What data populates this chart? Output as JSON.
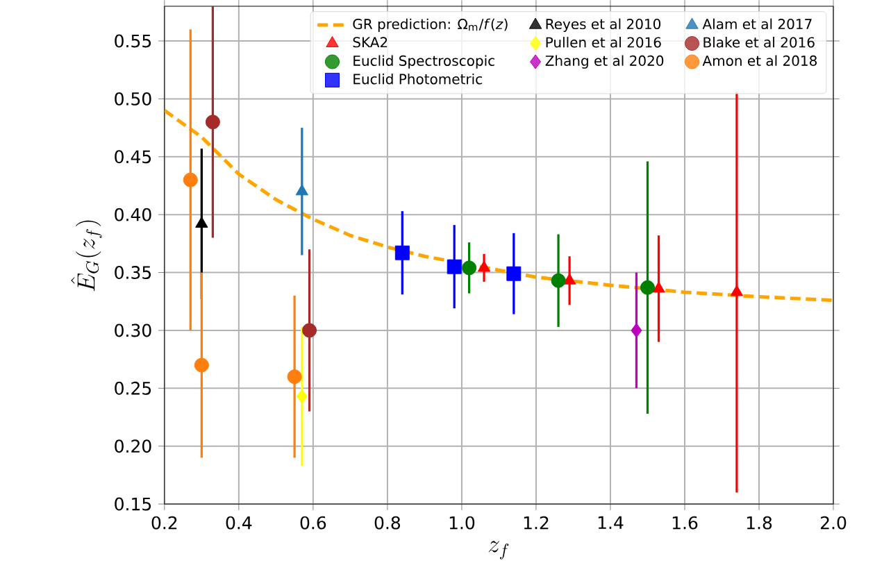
{
  "chart_data": {
    "type": "scatter",
    "xlabel": "z_f",
    "ylabel": "\\hat{E}_G(z_f)",
    "xlim": [
      0.2,
      2.0
    ],
    "xticks": [
      0.2,
      0.4,
      0.6,
      0.8,
      {
        "value": 1.0,
        "label": "1.0"
      },
      1.2,
      1.4,
      1.6,
      1.8,
      {
        "value": 2.0,
        "label": "2.0"
      }
    ],
    "ylim": [
      0.15,
      0.58
    ],
    "yticks": [
      0.15,
      {
        "value": 0.2,
        "label": "0.20"
      },
      0.25,
      {
        "value": 0.3,
        "label": "0.30"
      },
      0.35,
      {
        "value": 0.4,
        "label": "0.40"
      },
      0.45,
      {
        "value": 0.5,
        "label": "0.50"
      },
      0.55
    ],
    "grid": true,
    "legend": "top right",
    "series": [
      {
        "name": "GR prediction: Ω$_{m}$/*f*(*z*)",
        "type": "line",
        "line_style": "dashed",
        "marker": "none",
        "color": "#ffa500",
        "x": [
          0.2,
          0.3,
          0.4,
          0.5,
          0.6,
          0.7,
          0.8,
          0.9,
          1.2,
          1.4,
          1.6,
          1.8,
          2.0
        ],
        "values": [
          0.49,
          0.467,
          0.435,
          0.413,
          0.396,
          0.382,
          0.372,
          0.364,
          0.346,
          0.339,
          0.333,
          0.329,
          0.326
        ]
      },
      {
        "name": "Reyes et al 2010",
        "marker": "triangle",
        "color": "#000000",
        "x": [
          0.3
        ],
        "values": [
          0.392
        ],
        "errors": [
          0.065
        ]
      },
      {
        "name": "Alam et al 2017",
        "marker": "triangle",
        "color": "#1f77b4",
        "x": [
          0.57
        ],
        "values": [
          0.42
        ],
        "errors": [
          0.055
        ]
      },
      {
        "name": "SKA2",
        "marker": "triangle",
        "color": "#ff0000",
        "x": [
          1.06,
          1.29,
          1.53,
          1.74
        ],
        "values": [
          0.354,
          0.343,
          0.336,
          0.333
        ],
        "errors": [
          0.012,
          0.021,
          0.046,
          0.173
        ]
      },
      {
        "name": "Pullen et al 2016",
        "marker": "diamond",
        "color": "#ffff00",
        "x": [
          0.57
        ],
        "values": [
          0.243
        ],
        "errors": [
          0.06
        ]
      },
      {
        "name": "Blake et al 2016",
        "marker": "circle",
        "color": "#a52a2a",
        "x": [
          0.33,
          0.59
        ],
        "values": [
          0.48,
          0.3
        ],
        "errors": [
          0.1,
          0.07
        ]
      },
      {
        "name": "Euclid Spectroscopic",
        "marker": "circle",
        "color": "#008000",
        "x": [
          1.02,
          1.26,
          1.5
        ],
        "values": [
          0.354,
          0.343,
          0.337
        ],
        "errors": [
          0.022,
          0.04,
          0.109
        ]
      },
      {
        "name": "Zhang et al 2020",
        "marker": "diamond",
        "color": "#bf00bf",
        "x": [
          1.47
        ],
        "values": [
          0.3
        ],
        "errors": [
          0.05
        ]
      },
      {
        "name": "Amon et al 2018",
        "marker": "circle",
        "color": "#ff7f0e",
        "x": [
          0.27,
          0.3,
          0.55
        ],
        "values": [
          0.43,
          0.27,
          0.26
        ],
        "errors": [
          0.13,
          0.08,
          0.07
        ]
      },
      {
        "name": "Euclid Photometric",
        "marker": "square",
        "color": "#0000ff",
        "x": [
          0.84,
          0.98,
          1.14
        ],
        "values": [
          0.367,
          0.355,
          0.349
        ],
        "errors": [
          0.036,
          0.036,
          0.035
        ]
      }
    ]
  }
}
